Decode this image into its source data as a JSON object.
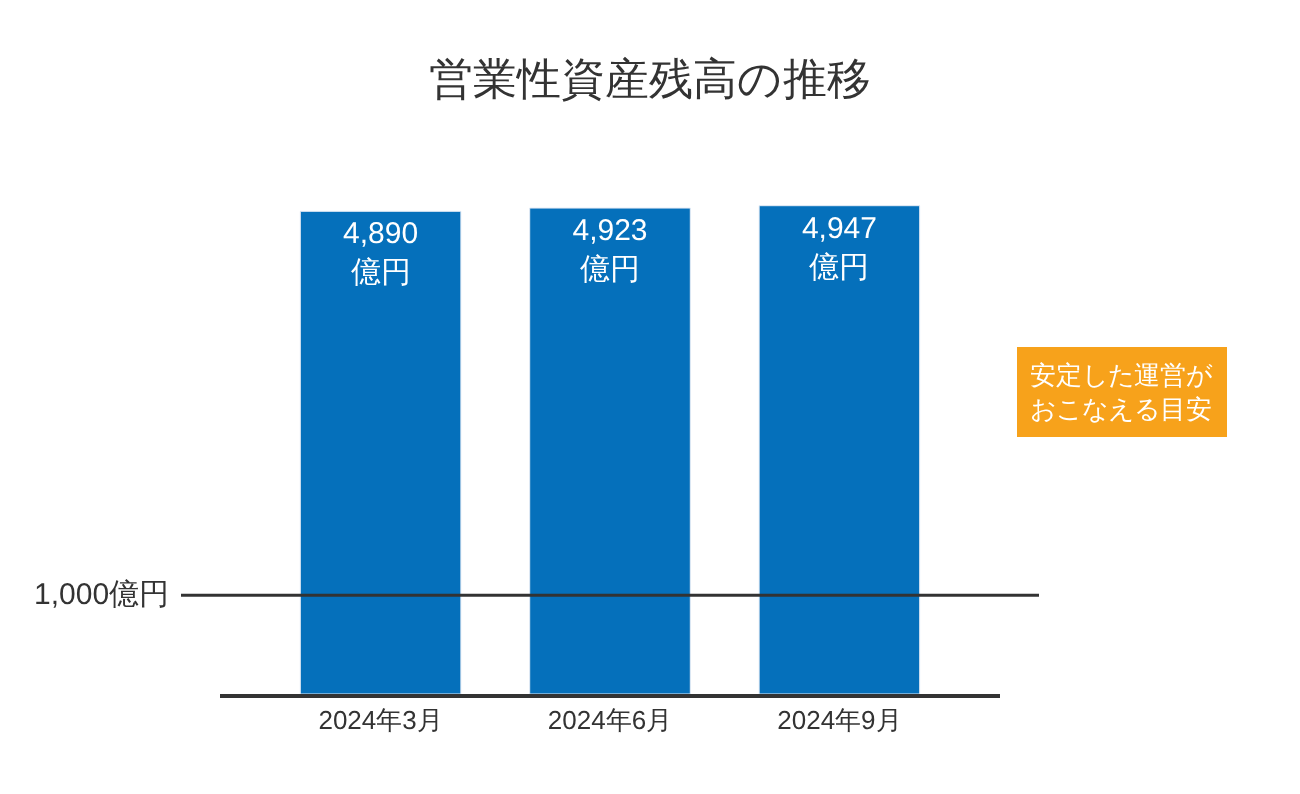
{
  "chart_data": {
    "type": "bar",
    "title": "営業性資産残高の推移",
    "categories": [
      "2024年3月",
      "2024年6月",
      "2024年9月"
    ],
    "values": [
      4890,
      4923,
      4947
    ],
    "color": "#0570bb",
    "value_labels": [
      "4,890\n億円",
      "4,923\n億円",
      "4,947\n億円"
    ],
    "legend": false,
    "ref_lines": [
      {
        "axis": "y",
        "value": 1000,
        "label": "1,000億円",
        "color": "#333333"
      }
    ],
    "annotations": [
      "安定した運営が",
      "おこなえる目安"
    ]
  }
}
